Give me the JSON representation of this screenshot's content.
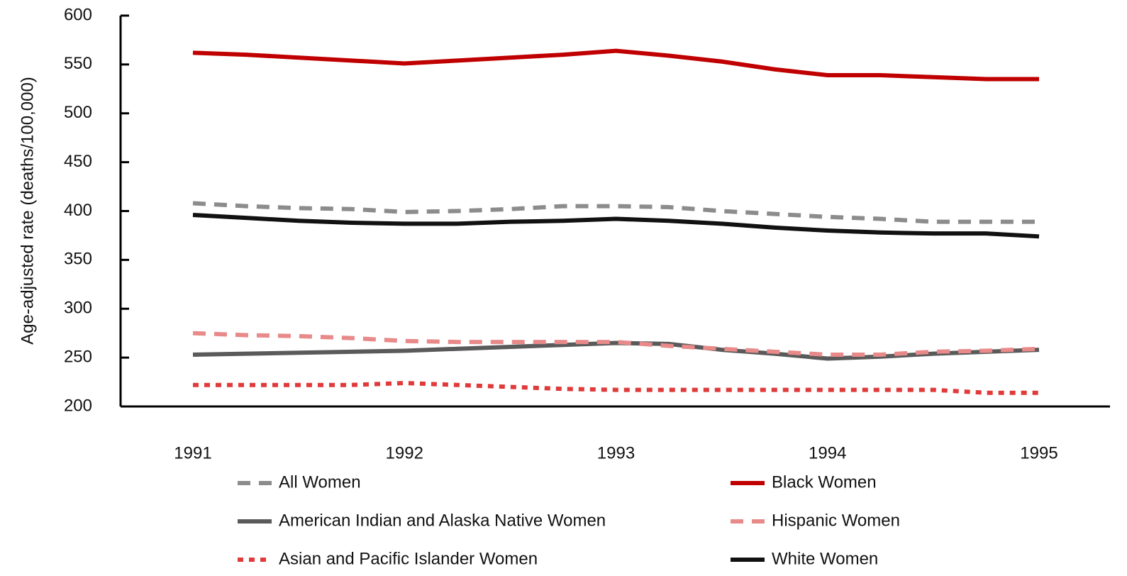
{
  "chart_data": {
    "type": "line",
    "y_label": "Age-adjusted rate (deaths/100,000)",
    "categories": [
      "1991",
      null,
      null,
      null,
      "1992",
      null,
      null,
      null,
      "1993",
      null,
      null,
      null,
      "1994",
      null,
      null,
      null,
      "1995"
    ],
    "ylim": [
      200,
      600
    ],
    "yticks": [
      200,
      250,
      300,
      350,
      400,
      450,
      500,
      550,
      600
    ],
    "series": [
      {
        "name": "All Women",
        "color": "#8c8c8c",
        "dash": "dashed",
        "values": [
          408,
          405,
          403,
          402,
          399,
          400,
          402,
          405,
          405,
          404,
          400,
          397,
          394,
          392,
          389,
          389,
          389
        ]
      },
      {
        "name": "Black Women",
        "color": "#c00000",
        "dash": "solid",
        "values": [
          562,
          560,
          557,
          554,
          551,
          554,
          557,
          560,
          564,
          559,
          553,
          545,
          539,
          539,
          537,
          535,
          535
        ]
      },
      {
        "name": "American Indian and Alaska Native Women",
        "color": "#5a5a5a",
        "dash": "solid",
        "values": [
          253,
          254,
          255,
          256,
          257,
          259,
          261,
          263,
          265,
          264,
          258,
          254,
          249,
          251,
          254,
          256,
          258
        ]
      },
      {
        "name": "Hispanic Women",
        "color": "#e88a8a",
        "dash": "dashed",
        "values": [
          275,
          273,
          272,
          270,
          267,
          266,
          266,
          266,
          266,
          262,
          259,
          256,
          253,
          253,
          256,
          257,
          259
        ]
      },
      {
        "name": "Asian and Pacific Islander Women",
        "color": "#e03a3a",
        "dash": "dotted",
        "values": [
          222,
          222,
          222,
          222,
          224,
          222,
          220,
          218,
          217,
          217,
          217,
          217,
          217,
          217,
          217,
          214,
          214
        ]
      },
      {
        "name": "White Women",
        "color": "#111111",
        "dash": "solid",
        "values": [
          396,
          393,
          390,
          388,
          387,
          387,
          389,
          390,
          392,
          390,
          387,
          383,
          380,
          378,
          377,
          377,
          374
        ]
      }
    ]
  }
}
